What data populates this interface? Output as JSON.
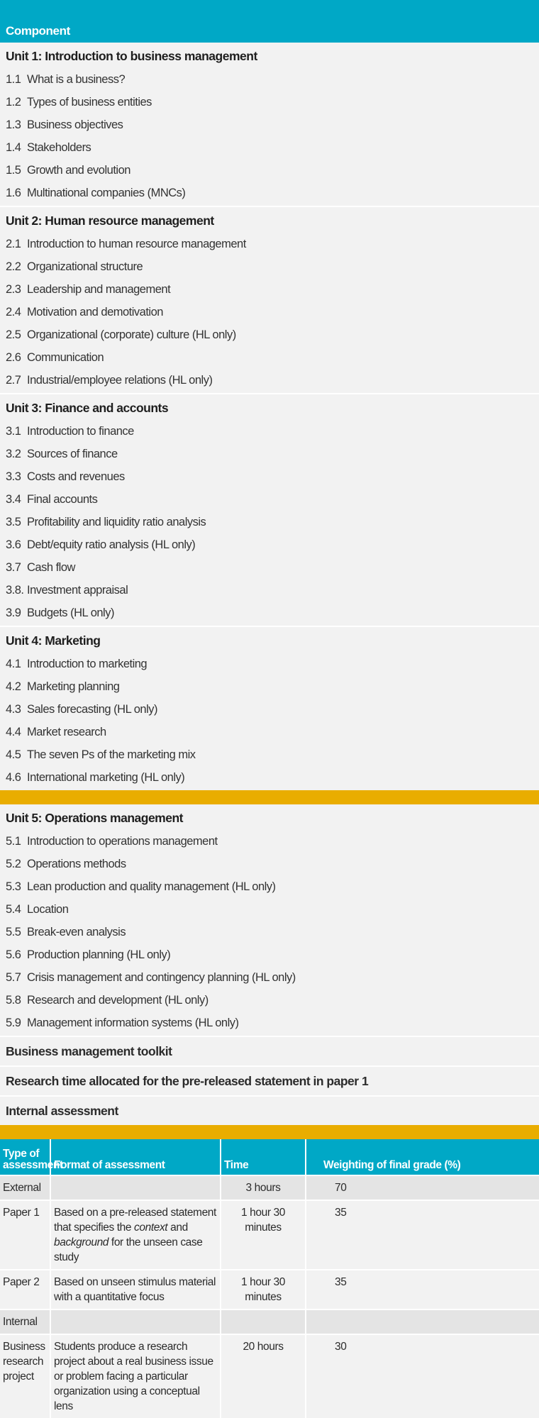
{
  "header": {
    "title": "Component"
  },
  "units": [
    {
      "title": "Unit 1: Introduction to business management",
      "items": [
        {
          "num": "1.1",
          "label": "What is a business?"
        },
        {
          "num": "1.2",
          "label": "Types of business entities"
        },
        {
          "num": "1.3",
          "label": "Business objectives"
        },
        {
          "num": "1.4",
          "label": "Stakeholders"
        },
        {
          "num": "1.5",
          "label": "Growth and evolution"
        },
        {
          "num": "1.6",
          "label": "Multinational companies (MNCs)"
        }
      ]
    },
    {
      "title": "Unit 2: Human resource management",
      "items": [
        {
          "num": "2.1",
          "label": "Introduction to human resource management"
        },
        {
          "num": "2.2",
          "label": "Organizational structure"
        },
        {
          "num": "2.3",
          "label": "Leadership and management"
        },
        {
          "num": "2.4",
          "label": "Motivation and demotivation"
        },
        {
          "num": "2.5",
          "label": "Organizational (corporate) culture (HL only)"
        },
        {
          "num": "2.6",
          "label": "Communication"
        },
        {
          "num": "2.7",
          "label": "Industrial/employee relations (HL only)"
        }
      ]
    },
    {
      "title": "Unit 3: Finance and accounts",
      "items": [
        {
          "num": "3.1",
          "label": "Introduction to finance"
        },
        {
          "num": "3.2",
          "label": "Sources of finance"
        },
        {
          "num": "3.3",
          "label": "Costs and revenues"
        },
        {
          "num": "3.4",
          "label": "Final accounts"
        },
        {
          "num": "3.5",
          "label": "Profitability and liquidity ratio analysis"
        },
        {
          "num": "3.6",
          "label": "Debt/equity ratio analysis (HL only)"
        },
        {
          "num": "3.7",
          "label": "Cash flow"
        },
        {
          "num": "3.8.",
          "label": "Investment appraisal"
        },
        {
          "num": "3.9",
          "label": "Budgets (HL only)"
        }
      ]
    },
    {
      "title": "Unit 4: Marketing",
      "items": [
        {
          "num": "4.1",
          "label": "Introduction to marketing"
        },
        {
          "num": "4.2",
          "label": "Marketing planning"
        },
        {
          "num": "4.3",
          "label": "Sales forecasting (HL only)"
        },
        {
          "num": "4.4",
          "label": "Market research"
        },
        {
          "num": "4.5",
          "label": "The seven Ps of the marketing mix"
        },
        {
          "num": "4.6",
          "label": "International marketing (HL only)"
        }
      ]
    }
  ],
  "unit5": {
    "title": "Unit 5: Operations management",
    "items": [
      {
        "num": "5.1",
        "label": "Introduction to operations management"
      },
      {
        "num": "5.2",
        "label": "Operations methods"
      },
      {
        "num": "5.3",
        "label": "Lean production and quality management (HL only)"
      },
      {
        "num": "5.4",
        "label": "Location"
      },
      {
        "num": "5.5",
        "label": "Break-even analysis"
      },
      {
        "num": "5.6",
        "label": "Production planning (HL only)"
      },
      {
        "num": "5.7",
        "label": "Crisis management and contingency planning (HL only)"
      },
      {
        "num": "5.8",
        "label": "Research and development (HL only)"
      },
      {
        "num": "5.9",
        "label": "Management information systems (HL only)"
      }
    ]
  },
  "extra_rows": [
    "Business management toolkit",
    "Research time allocated for the pre-released statement in paper 1",
    "Internal assessment"
  ],
  "colors": {
    "header": "#00a8c6",
    "band": "#e9ad00",
    "background": "#f2f2f2"
  },
  "assessment": {
    "headers": [
      "Type of assessment",
      "Format of assessment",
      "Time",
      "Weighting of final grade (%)"
    ],
    "rows": [
      {
        "kind": "grp",
        "type": "External",
        "format": "",
        "time": "3 hours",
        "weight": "70"
      },
      {
        "kind": "row",
        "type": "Paper 1",
        "format_parts": [
          "Based on a pre-released statement that specifies the ",
          "context",
          " and ",
          "background",
          " for the unseen case study"
        ],
        "time": "1 hour 30 minutes",
        "weight": "35"
      },
      {
        "kind": "row",
        "type": "Paper 2",
        "format": "Based on unseen stimulus material with a quantitative focus",
        "time": "1 hour 30 minutes",
        "weight": "35"
      },
      {
        "kind": "grp",
        "type": "Internal",
        "format": "",
        "time": "",
        "weight": ""
      },
      {
        "kind": "row",
        "type": "Business research project",
        "format": "Students produce a research project about a real business issue or problem facing a particular organization using a conceptual lens",
        "time": "20 hours",
        "weight": "30"
      }
    ]
  }
}
